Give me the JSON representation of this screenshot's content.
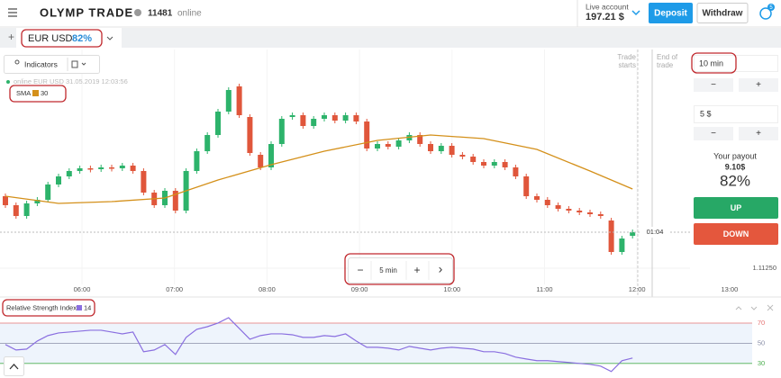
{
  "header": {
    "logo": "OLYMP TRADE",
    "online_count": "11481",
    "online_label": "online",
    "account_label": "Live account",
    "balance": "197.21 $",
    "deposit": "Deposit",
    "withdraw": "Withdraw",
    "notifications": "5"
  },
  "tab": {
    "add": "+",
    "asset": "EUR USD",
    "payout": "82%"
  },
  "toolbar": {
    "indicators": "Indicators"
  },
  "chart": {
    "type": "candlestick",
    "status": "online EUR USD 31.05.2019 12:03:56",
    "up_color": "#2db36b",
    "down_color": "#e0563b",
    "ylim": [
      1.11226,
      1.11726
    ],
    "yticks": [
      {
        "value": 1.1125,
        "label": "1.11250"
      }
    ],
    "candles": [
      [
        1.1141,
        1.1139
      ],
      [
        1.1139,
        1.11366
      ],
      [
        1.11366,
        1.11394
      ],
      [
        1.11394,
        1.11402
      ],
      [
        1.11402,
        1.11436
      ],
      [
        1.11436,
        1.11454
      ],
      [
        1.11454,
        1.11466
      ],
      [
        1.11466,
        1.11472
      ],
      [
        1.11472,
        1.1147
      ],
      [
        1.1147,
        1.11474
      ],
      [
        1.11474,
        1.11472
      ],
      [
        1.11472,
        1.11478
      ],
      [
        1.11478,
        1.11466
      ],
      [
        1.11466,
        1.11418
      ],
      [
        1.11418,
        1.1139
      ],
      [
        1.1139,
        1.11422
      ],
      [
        1.11422,
        1.11378
      ],
      [
        1.11378,
        1.11466
      ],
      [
        1.11466,
        1.1151
      ],
      [
        1.1151,
        1.11546
      ],
      [
        1.11546,
        1.11598
      ],
      [
        1.11598,
        1.11646
      ],
      [
        1.11654,
        1.1159
      ],
      [
        1.11586,
        1.11506
      ],
      [
        1.11502,
        1.11474
      ],
      [
        1.11474,
        1.11526
      ],
      [
        1.11526,
        1.11582
      ],
      [
        1.11586,
        1.1159
      ],
      [
        1.1159,
        1.11566
      ],
      [
        1.11566,
        1.11582
      ],
      [
        1.11582,
        1.1159
      ],
      [
        1.1159,
        1.11578
      ],
      [
        1.11578,
        1.1159
      ],
      [
        1.1159,
        1.11576
      ],
      [
        1.11576,
        1.11516
      ],
      [
        1.11516,
        1.11526
      ],
      [
        1.11526,
        1.1152
      ],
      [
        1.1152,
        1.11534
      ],
      [
        1.11534,
        1.11546
      ],
      [
        1.11546,
        1.11526
      ],
      [
        1.11526,
        1.1151
      ],
      [
        1.1151,
        1.11522
      ],
      [
        1.11522,
        1.11502
      ],
      [
        1.11502,
        1.11498
      ],
      [
        1.11498,
        1.11486
      ],
      [
        1.11486,
        1.11478
      ],
      [
        1.11478,
        1.11486
      ],
      [
        1.11486,
        1.11474
      ],
      [
        1.11474,
        1.11454
      ],
      [
        1.11454,
        1.1141
      ],
      [
        1.1141,
        1.11402
      ],
      [
        1.11402,
        1.1139
      ],
      [
        1.1139,
        1.11382
      ],
      [
        1.11382,
        1.11378
      ],
      [
        1.11378,
        1.11374
      ],
      [
        1.11374,
        1.1137
      ],
      [
        1.1137,
        1.11366
      ],
      [
        1.11356,
        1.11286
      ],
      [
        1.11286,
        1.11316
      ],
      [
        1.11322,
        1.1133
      ]
    ],
    "sma": {
      "name": "SMA",
      "period": "30",
      "color": "#d4901a",
      "x": [
        0,
        5,
        10,
        15,
        20,
        25,
        30,
        35,
        40,
        45,
        50,
        55,
        59
      ],
      "values": [
        1.1141,
        1.11394,
        1.11398,
        1.11406,
        1.11446,
        1.1148,
        1.1151,
        1.11534,
        1.11546,
        1.11538,
        1.11514,
        1.11466,
        1.11426
      ]
    },
    "time_labels": [
      "06:00",
      "07:00",
      "08:00",
      "09:00",
      "10:00",
      "11:00",
      "12:00",
      "13:00"
    ],
    "timer": "01:04",
    "trade_starts": "Trade starts",
    "end_of_trade": "End of trade",
    "zoom": {
      "minus": "−",
      "interval": "5 min",
      "plus": "+",
      "next": "›"
    }
  },
  "rsi": {
    "type": "line",
    "name": "Relative Strength Index",
    "period": "14",
    "color": "#8a6fe0",
    "ylim": [
      20,
      78
    ],
    "yticks": [
      30,
      50,
      70
    ],
    "level_colors": [
      "#4caf50",
      "#8a8fa8",
      "#e57373"
    ],
    "values": [
      48.7,
      43.3,
      44.2,
      52.2,
      57.6,
      60.2,
      61.1,
      62,
      62.9,
      62.9,
      61.1,
      59.3,
      61.1,
      41.6,
      43.3,
      48.7,
      38.9,
      55.8,
      63.8,
      66.4,
      70,
      75.3,
      64.7,
      54,
      57.6,
      59.3,
      59.3,
      58.4,
      55.8,
      55.8,
      57.6,
      56.7,
      59.3,
      52.2,
      46,
      46,
      45.1,
      43.3,
      46.9,
      45.1,
      43.3,
      45.1,
      46,
      45.1,
      44.2,
      41.6,
      41.6,
      39.8,
      36.2,
      34.4,
      32.7,
      32.7,
      31.8,
      30.9,
      30,
      29.1,
      27.3,
      22,
      32.7,
      35.3
    ]
  },
  "trade": {
    "duration": "10 min",
    "minus": "−",
    "plus": "+",
    "amount": "5 $",
    "payout_label": "Your payout",
    "payout_amount": "9.10$",
    "payout_percent": "82%",
    "up": "UP",
    "down": "DOWN"
  }
}
